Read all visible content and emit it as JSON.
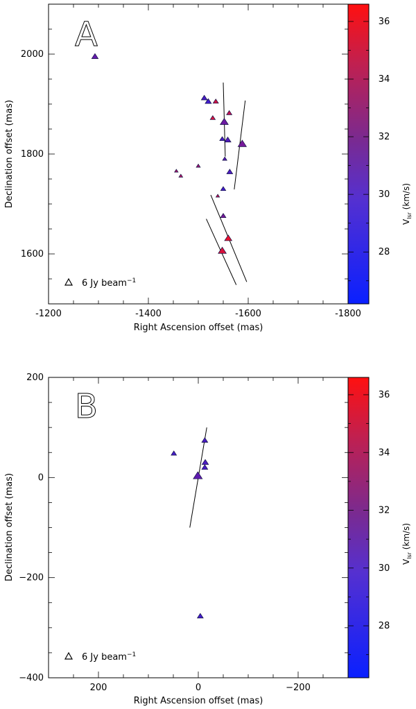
{
  "chart_data": [
    {
      "type": "scatter",
      "panel_label": "A",
      "xlabel": "Right Ascension offset (mas)",
      "ylabel": "Declination offset (mas)",
      "xlim": [
        -1200,
        -1800
      ],
      "ylim": [
        1500,
        2100
      ],
      "xticks": [
        "-1200",
        "-1400",
        "-1600",
        "-1800"
      ],
      "xtick_values": [
        -1200,
        -1400,
        -1600,
        -1800
      ],
      "yticks": [
        "1600",
        "1800",
        "2000"
      ],
      "ytick_values": [
        1600,
        1800,
        2000
      ],
      "legend_label": "6 Jy beam",
      "legend_sup": "−1",
      "colorbar_label": "V",
      "colorbar_sub": "lsr",
      "colorbar_unit": " (km/s)",
      "colorbar_range": [
        26.2,
        36.6
      ],
      "colorbar_ticks": [
        "28",
        "30",
        "32",
        "34",
        "36"
      ],
      "colorbar_tick_values": [
        28,
        30,
        32,
        34,
        36
      ],
      "points": [
        {
          "x": -1293,
          "y": 1995,
          "flux": 5,
          "v": 30.0
        },
        {
          "x": -1512,
          "y": 1912,
          "flux": 4,
          "v": 28.8
        },
        {
          "x": -1520,
          "y": 1905,
          "flux": 4.5,
          "v": 28.5
        },
        {
          "x": -1535,
          "y": 1905,
          "flux": 3,
          "v": 34.6
        },
        {
          "x": -1562,
          "y": 1882,
          "flux": 3,
          "v": 34.0
        },
        {
          "x": -1529,
          "y": 1872,
          "flux": 2.5,
          "v": 34.8
        },
        {
          "x": -1552,
          "y": 1864,
          "flux": 9,
          "v": 30.4
        },
        {
          "x": -1548,
          "y": 1830,
          "flux": 2.5,
          "v": 28.8
        },
        {
          "x": -1559,
          "y": 1828,
          "flux": 5,
          "v": 29.2
        },
        {
          "x": -1588,
          "y": 1820,
          "flux": 10,
          "v": 30.8
        },
        {
          "x": -1553,
          "y": 1790,
          "flux": 1.5,
          "v": 29.5
        },
        {
          "x": -1500,
          "y": 1776,
          "flux": 1.2,
          "v": 32.5
        },
        {
          "x": -1563,
          "y": 1764,
          "flux": 4,
          "v": 29.0
        },
        {
          "x": -1456,
          "y": 1766,
          "flux": 0.8,
          "v": 32.8
        },
        {
          "x": -1465,
          "y": 1756,
          "flux": 1,
          "v": 33.2
        },
        {
          "x": -1550,
          "y": 1730,
          "flux": 2.5,
          "v": 28.6
        },
        {
          "x": -1539,
          "y": 1716,
          "flux": 0.8,
          "v": 34.0
        },
        {
          "x": -1550,
          "y": 1676,
          "flux": 3,
          "v": 30.8
        },
        {
          "x": -1560,
          "y": 1631,
          "flux": 7,
          "v": 35.6
        },
        {
          "x": -1548,
          "y": 1606,
          "flux": 9,
          "v": 35.0
        }
      ],
      "lines": [
        {
          "x1": -1550,
          "y1": 1943,
          "x2": -1554,
          "y2": 1795
        },
        {
          "x1": -1594,
          "y1": 1907,
          "x2": -1572,
          "y2": 1729
        },
        {
          "x1": -1525,
          "y1": 1718,
          "x2": -1597,
          "y2": 1544
        },
        {
          "x1": -1516,
          "y1": 1670,
          "x2": -1576,
          "y2": 1538
        }
      ]
    },
    {
      "type": "scatter",
      "panel_label": "B",
      "xlabel": "Right Ascension offset (mas)",
      "ylabel": "Declination offset (mas)",
      "xlim": [
        300,
        -300
      ],
      "ylim": [
        -400,
        200
      ],
      "xticks": [
        "200",
        "0",
        "−200"
      ],
      "xtick_values": [
        200,
        0,
        -200
      ],
      "yticks": [
        "−400",
        "−200",
        "0",
        "200"
      ],
      "ytick_values": [
        -400,
        -200,
        0,
        200
      ],
      "legend_label": "6 Jy beam",
      "legend_sup": "−1",
      "colorbar_label": "V",
      "colorbar_sub": "lsr",
      "colorbar_unit": " (km/s)",
      "colorbar_range": [
        26.2,
        36.6
      ],
      "colorbar_ticks": [
        "28",
        "30",
        "32",
        "34",
        "36"
      ],
      "colorbar_tick_values": [
        28,
        30,
        32,
        34,
        36
      ],
      "points": [
        {
          "x": -13,
          "y": 74,
          "flux": 4,
          "v": 28.9
        },
        {
          "x": 49,
          "y": 48,
          "flux": 3,
          "v": 28.7
        },
        {
          "x": -14,
          "y": 30,
          "flux": 5,
          "v": 29.0
        },
        {
          "x": -13,
          "y": 20,
          "flux": 4,
          "v": 28.8
        },
        {
          "x": 1,
          "y": 3,
          "flux": 12,
          "v": 29.8
        },
        {
          "x": -4,
          "y": -277,
          "flux": 4,
          "v": 28.6
        }
      ],
      "lines": [
        {
          "x1": -17,
          "y1": 100,
          "x2": 17,
          "y2": -100
        }
      ]
    }
  ]
}
